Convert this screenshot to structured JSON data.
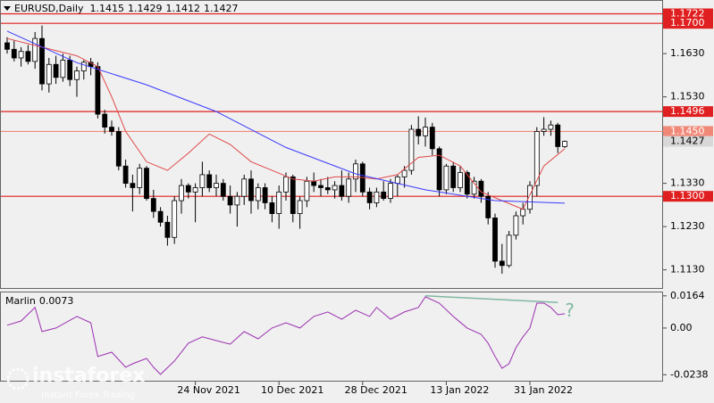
{
  "chart_data": [
    {
      "type": "candlestick",
      "title": "EURUSD,Daily",
      "categories": [
        null,
        null,
        null,
        null,
        null,
        null,
        null,
        null,
        null,
        null,
        null,
        null,
        null,
        null,
        null,
        null,
        null,
        null,
        null,
        null,
        null,
        null,
        null,
        null,
        null,
        null,
        null,
        "24 Nov 2021",
        null,
        null,
        null,
        null,
        null,
        null,
        null,
        null,
        null,
        null,
        null,
        "10 Dec 2021",
        null,
        null,
        null,
        null,
        null,
        null,
        null,
        null,
        null,
        null,
        null,
        "28 Dec 2021",
        null,
        null,
        null,
        null,
        null,
        null,
        null,
        null,
        null,
        null,
        null,
        "13 Jan 2022",
        null,
        null,
        null,
        null,
        null,
        null,
        null,
        null,
        null,
        null,
        null,
        "31 Jan 2022",
        null,
        null,
        null,
        null,
        null
      ],
      "open": [
        1.1655,
        1.164,
        1.162,
        1.1635,
        1.1612,
        1.1665,
        1.156,
        1.1605,
        1.1575,
        1.1615,
        1.157,
        1.159,
        1.161,
        1.16,
        1.149,
        1.146,
        1.145,
        1.137,
        1.133,
        1.132,
        1.1365,
        1.1295,
        1.1265,
        1.124,
        1.1205,
        1.129,
        1.1325,
        1.131,
        1.132,
        1.135,
        1.132,
        1.133,
        1.13,
        1.128,
        1.13,
        1.134,
        1.129,
        1.132,
        1.1285,
        1.126,
        1.131,
        1.1345,
        1.126,
        1.129,
        1.1335,
        1.1325,
        1.132,
        1.1315,
        1.1325,
        1.13,
        1.134,
        1.1375,
        1.131,
        1.1285,
        1.131,
        1.1295,
        1.133,
        1.1345,
        1.136,
        1.1455,
        1.144,
        1.146,
        1.141,
        1.1315,
        1.137,
        1.132,
        1.1355,
        1.1305,
        1.1335,
        1.13,
        1.125,
        1.115,
        1.114,
        1.121,
        1.1255,
        1.127,
        1.1325,
        1.145,
        1.1455,
        1.1465,
        1.1415
      ],
      "high": [
        1.1668,
        1.166,
        1.1645,
        1.165,
        1.168,
        1.1695,
        1.162,
        1.1625,
        1.163,
        1.1625,
        1.16,
        1.1615,
        1.162,
        1.161,
        1.15,
        1.1475,
        1.146,
        1.1385,
        1.135,
        1.1375,
        1.137,
        1.1315,
        1.1275,
        1.1255,
        1.13,
        1.134,
        1.133,
        1.133,
        1.138,
        1.136,
        1.135,
        1.134,
        1.1325,
        1.131,
        1.135,
        1.136,
        1.133,
        1.133,
        1.13,
        1.1325,
        1.1355,
        1.135,
        1.13,
        1.1345,
        1.1355,
        1.134,
        1.1345,
        1.1335,
        1.136,
        1.1355,
        1.1385,
        1.138,
        1.132,
        1.132,
        1.1335,
        1.134,
        1.135,
        1.137,
        1.1465,
        1.1485,
        1.1482,
        1.147,
        1.1415,
        1.1375,
        1.138,
        1.137,
        1.136,
        1.1345,
        1.134,
        1.131,
        1.126,
        1.119,
        1.122,
        1.1265,
        1.1285,
        1.1335,
        1.146,
        1.1483,
        1.1475,
        1.147,
        1.1429
      ],
      "low": [
        1.163,
        1.1612,
        1.16,
        1.1605,
        1.1595,
        1.1545,
        1.154,
        1.156,
        1.1565,
        1.1555,
        1.153,
        1.157,
        1.158,
        1.148,
        1.1445,
        1.144,
        1.136,
        1.132,
        1.1265,
        1.1305,
        1.129,
        1.125,
        1.123,
        1.1186,
        1.119,
        1.126,
        1.1295,
        1.124,
        1.13,
        1.131,
        1.13,
        1.129,
        1.126,
        1.123,
        1.128,
        1.126,
        1.127,
        1.127,
        1.124,
        1.1225,
        1.129,
        1.124,
        1.1225,
        1.1275,
        1.131,
        1.13,
        1.1305,
        1.1295,
        1.129,
        1.1285,
        1.131,
        1.13,
        1.127,
        1.1275,
        1.129,
        1.1285,
        1.13,
        1.132,
        1.135,
        1.142,
        1.1415,
        1.1395,
        1.13,
        1.1305,
        1.131,
        1.131,
        1.1295,
        1.1295,
        1.1285,
        1.1235,
        1.1135,
        1.1121,
        1.1135,
        1.12,
        1.1235,
        1.126,
        1.13,
        1.144,
        1.144,
        1.14,
        1.1412
      ],
      "close": [
        1.164,
        1.162,
        1.1635,
        1.1612,
        1.1665,
        1.156,
        1.1605,
        1.1575,
        1.1615,
        1.157,
        1.159,
        1.161,
        1.16,
        1.149,
        1.146,
        1.145,
        1.137,
        1.133,
        1.132,
        1.1365,
        1.1295,
        1.1265,
        1.124,
        1.1205,
        1.129,
        1.1325,
        1.131,
        1.132,
        1.135,
        1.132,
        1.133,
        1.13,
        1.128,
        1.13,
        1.134,
        1.129,
        1.132,
        1.1285,
        1.126,
        1.131,
        1.1345,
        1.126,
        1.129,
        1.1335,
        1.1325,
        1.132,
        1.1315,
        1.1325,
        1.13,
        1.134,
        1.1375,
        1.131,
        1.1285,
        1.131,
        1.1295,
        1.133,
        1.1345,
        1.136,
        1.1455,
        1.144,
        1.146,
        1.141,
        1.1315,
        1.137,
        1.132,
        1.1355,
        1.1305,
        1.1335,
        1.13,
        1.125,
        1.115,
        1.114,
        1.121,
        1.1255,
        1.127,
        1.1325,
        1.145,
        1.1455,
        1.1465,
        1.1415,
        1.1427
      ],
      "up_color": "#ffffff",
      "down_color": "#000000",
      "moving_averages": [
        {
          "color": "#e04848",
          "x": [
            0,
            5,
            10,
            13,
            15,
            17,
            20,
            23,
            26,
            29,
            32,
            35,
            38,
            41,
            44,
            47,
            50,
            53,
            56,
            59,
            62,
            65,
            68,
            71,
            74,
            77,
            80
          ],
          "values": [
            1.1665,
            1.1645,
            1.1625,
            1.16,
            1.153,
            1.145,
            1.138,
            1.136,
            1.14,
            1.1444,
            1.142,
            1.138,
            1.136,
            1.134,
            1.1335,
            1.1345,
            1.1345,
            1.134,
            1.135,
            1.139,
            1.1395,
            1.137,
            1.131,
            1.129,
            1.127,
            1.137,
            1.141
          ]
        },
        {
          "color": "#3a3aff",
          "x": [
            0,
            10,
            20,
            30,
            40,
            50,
            60,
            70,
            80
          ],
          "values": [
            1.1682,
            1.1609,
            1.1558,
            1.1496,
            1.1413,
            1.1352,
            1.1315,
            1.129,
            1.1284
          ]
        }
      ],
      "levels": [
        {
          "value": 1.1722,
          "label": "1.1722",
          "color": "#e02020"
        },
        {
          "value": 1.17,
          "label": "1.1700",
          "color": "#e02020"
        },
        {
          "value": 1.1496,
          "label": "1.1496",
          "color": "#e02020"
        },
        {
          "value": 1.145,
          "label": "1.1450",
          "color": "#f08878"
        },
        {
          "value": 1.13,
          "label": "1.1300",
          "color": "#e02020"
        }
      ],
      "ylim": [
        1.1088,
        1.1754
      ],
      "yticks": [
        {
          "value": 1.163,
          "label": "1.1630"
        },
        {
          "value": 1.153,
          "label": "1.1530"
        },
        {
          "value": 1.133,
          "label": "1.1330"
        },
        {
          "value": 1.123,
          "label": "1.1230"
        },
        {
          "value": 1.113,
          "label": "1.1130"
        }
      ],
      "grid": false
    },
    {
      "type": "line",
      "title": "Marlin",
      "color": "#9b30b0",
      "x": [
        0,
        2,
        4,
        5,
        7,
        10,
        12,
        13,
        15,
        17,
        18,
        20,
        21,
        22,
        24,
        26,
        28,
        30,
        32,
        34,
        36,
        38,
        40,
        42,
        44,
        46,
        48,
        50,
        52,
        53,
        55,
        57,
        59,
        60,
        62,
        64,
        66,
        68,
        69,
        70,
        71,
        72,
        73,
        74,
        75,
        76,
        77,
        78,
        79,
        80
      ],
      "values": [
        0.0014,
        0.0036,
        0.0105,
        -0.0018,
        0,
        0.0059,
        0.0027,
        -0.0145,
        -0.0123,
        -0.02,
        -0.0182,
        -0.0155,
        -0.02,
        -0.0236,
        -0.0168,
        -0.0077,
        -0.0045,
        -0.0064,
        -0.0082,
        -0.0018,
        -0.0055,
        0,
        0.0027,
        0,
        0.0059,
        0.0082,
        0.0045,
        0.0091,
        0.0059,
        0.0105,
        0.0045,
        0.0082,
        0.0105,
        0.0159,
        0.0127,
        0.0059,
        0,
        -0.0032,
        -0.0077,
        -0.0145,
        -0.0205,
        -0.0182,
        -0.01,
        -0.0045,
        0,
        0.0127,
        0.0127,
        0.0105,
        0.0068,
        0.0073
      ],
      "trendline": {
        "x": [
          60,
          79
        ],
        "values": [
          0.0164,
          0.013
        ],
        "color": "#80b8a0"
      },
      "annotation": "?",
      "ylim": [
        -0.0273,
        0.0186
      ],
      "yticks": [
        0.0164,
        {
          "value": 0,
          "label": "0.00"
        },
        -0.0238
      ]
    }
  ],
  "watermark": {
    "brand": "instaforex",
    "tagline": "Instant Forex Trading"
  }
}
